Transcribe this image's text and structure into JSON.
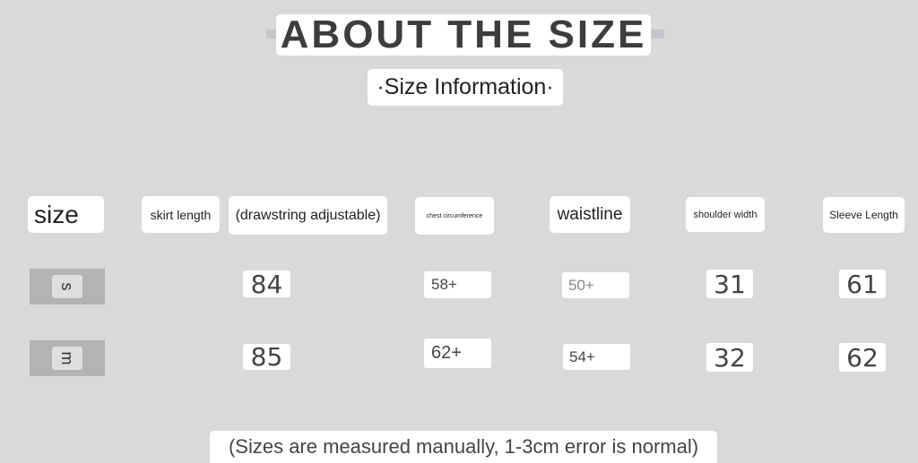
{
  "header": {
    "title": "ABOUT THE SIZE",
    "subtitle": "·Size Information·"
  },
  "table": {
    "headers": [
      "size",
      "skirt length",
      "(drawstring adjustable)",
      "chest circumference",
      "waistline",
      "shoulder width",
      "Sleeve Length"
    ],
    "rows": [
      {
        "size": "s",
        "skirt": "84",
        "chest": "58+",
        "waist": "50+",
        "shoulder": "31",
        "sleeve": "61"
      },
      {
        "size": "m",
        "skirt": "85",
        "chest": "62+",
        "waist": "54+",
        "shoulder": "32",
        "sleeve": "62"
      }
    ]
  },
  "footer": {
    "note": "(Sizes are measured manually, 1-3cm error is normal)"
  }
}
